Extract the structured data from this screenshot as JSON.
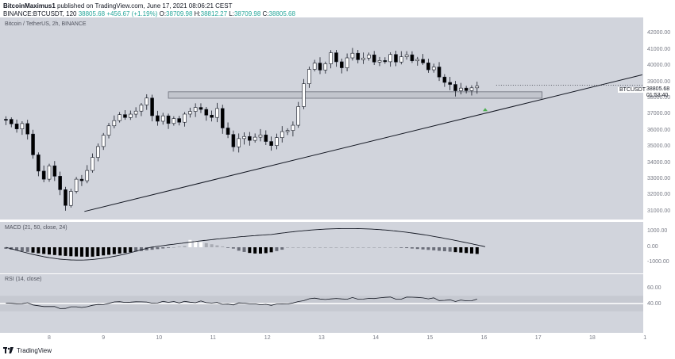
{
  "header": {
    "author": "BitcoinMaximus1",
    "published": "published on TradingView.com, June 17, 2021 08:06:21 CEST",
    "symbol_line": "BINANCE:BTCUSDT, 120",
    "last": "38805.68",
    "change": "+456.67 (+1.19%)",
    "o_label": "O:",
    "o": "38709.98",
    "h_label": "H:",
    "h": "38812.27",
    "l_label": "L:",
    "l": "38709.98",
    "c_label": "C:",
    "c": "38805.68"
  },
  "main_pane": {
    "title": "Bitcoin / TetherUS, 2h, BINANCE",
    "price_tag": "38805.68",
    "countdown": "01:53:40",
    "symbol_tag": "BTCUSDT",
    "y_ticks": [
      "42000.00",
      "41000.00",
      "40000.00",
      "39000.00",
      "38000.00",
      "37000.00",
      "36000.00",
      "35000.00",
      "34000.00",
      "33000.00",
      "32000.00",
      "31000.00"
    ]
  },
  "macd_pane": {
    "title": "MACD (21, 50, close, 24)",
    "y_ticks": [
      "1000.00",
      "0.00",
      "-1000.00"
    ]
  },
  "rsi_pane": {
    "title": "RSI (14, close)",
    "y_ticks": [
      "60.00",
      "40.00"
    ]
  },
  "x_ticks": [
    "8",
    "9",
    "10",
    "11",
    "12",
    "13",
    "14",
    "15",
    "16",
    "17",
    "18",
    "1"
  ],
  "footer": {
    "brand": "TradingView"
  },
  "colors": {
    "pane_bg": "#d1d4dc",
    "up": "#ffffff",
    "down": "#000000",
    "green": "#26a69a",
    "arrow": "#4caf50"
  },
  "chart_data": {
    "type": "candlestick",
    "symbol": "BTCUSDT",
    "timeframe": "2h",
    "ylim": [
      30500,
      43000
    ],
    "support_zone": [
      38000,
      38400
    ],
    "trendline_start": {
      "day": 8.65,
      "price": 31000
    },
    "trendline_end": {
      "day": 18.95,
      "price": 39450
    },
    "close_path": [
      [
        7.6,
        36700
      ],
      [
        7.7,
        36400
      ],
      [
        7.8,
        36200
      ],
      [
        7.9,
        36500
      ],
      [
        8.0,
        35800
      ],
      [
        8.1,
        34500
      ],
      [
        8.2,
        33600
      ],
      [
        8.3,
        32900
      ],
      [
        8.4,
        33800
      ],
      [
        8.5,
        33200
      ],
      [
        8.6,
        32400
      ],
      [
        8.7,
        31300
      ],
      [
        8.8,
        32200
      ],
      [
        8.9,
        33100
      ],
      [
        9.0,
        32900
      ],
      [
        9.1,
        33600
      ],
      [
        9.2,
        34300
      ],
      [
        9.3,
        35100
      ],
      [
        9.4,
        35700
      ],
      [
        9.5,
        36300
      ],
      [
        9.6,
        36700
      ],
      [
        9.7,
        37100
      ],
      [
        9.8,
        36700
      ],
      [
        9.9,
        36900
      ],
      [
        10.0,
        37300
      ],
      [
        10.1,
        37600
      ],
      [
        10.2,
        37900
      ],
      [
        10.3,
        37000
      ],
      [
        10.4,
        36600
      ],
      [
        10.5,
        36900
      ],
      [
        10.6,
        36400
      ],
      [
        10.7,
        36800
      ],
      [
        10.8,
        36600
      ],
      [
        10.9,
        36900
      ],
      [
        11.0,
        37200
      ],
      [
        11.1,
        37500
      ],
      [
        11.2,
        37300
      ],
      [
        11.3,
        37000
      ],
      [
        11.4,
        36900
      ],
      [
        11.5,
        37300
      ],
      [
        11.6,
        36200
      ],
      [
        11.7,
        35800
      ],
      [
        11.8,
        35100
      ],
      [
        11.9,
        35400
      ],
      [
        12.0,
        35700
      ],
      [
        12.1,
        35300
      ],
      [
        12.2,
        35600
      ],
      [
        12.3,
        35800
      ],
      [
        12.4,
        35300
      ],
      [
        12.5,
        35100
      ],
      [
        12.6,
        35500
      ],
      [
        12.7,
        35900
      ],
      [
        12.8,
        36100
      ],
      [
        12.9,
        36400
      ],
      [
        13.0,
        37500
      ],
      [
        13.1,
        39000
      ],
      [
        13.2,
        39900
      ],
      [
        13.3,
        40200
      ],
      [
        13.4,
        39700
      ],
      [
        13.5,
        40100
      ],
      [
        13.6,
        40700
      ],
      [
        13.7,
        40300
      ],
      [
        13.8,
        39900
      ],
      [
        13.9,
        40500
      ],
      [
        14.0,
        40800
      ],
      [
        14.1,
        40300
      ],
      [
        14.2,
        40500
      ],
      [
        14.3,
        40700
      ],
      [
        14.4,
        40300
      ],
      [
        14.5,
        40400
      ],
      [
        14.6,
        40200
      ],
      [
        14.7,
        40800
      ],
      [
        14.8,
        40300
      ],
      [
        14.9,
        40500
      ],
      [
        15.0,
        40600
      ],
      [
        15.1,
        40200
      ],
      [
        15.2,
        40300
      ],
      [
        15.3,
        40100
      ],
      [
        15.4,
        39700
      ],
      [
        15.5,
        39900
      ],
      [
        15.6,
        39300
      ],
      [
        15.7,
        39100
      ],
      [
        15.8,
        38900
      ],
      [
        15.9,
        38500
      ],
      [
        16.0,
        38700
      ],
      [
        16.1,
        38500
      ],
      [
        16.2,
        38600
      ],
      [
        16.3,
        38700
      ],
      [
        16.4,
        38806
      ]
    ],
    "macd_zero": 0,
    "rsi_levels": [
      70,
      50,
      30
    ]
  }
}
